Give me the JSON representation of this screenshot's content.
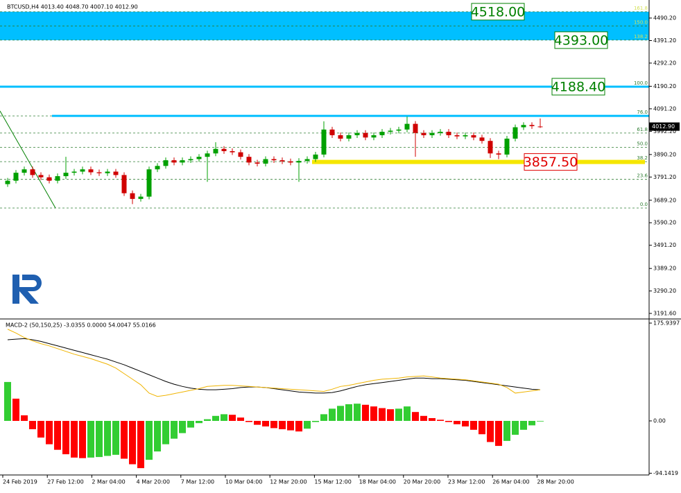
{
  "chart_data": [
    {
      "type": "candlestick",
      "title": "BTCUSD,H4  4013.40 4048.70 4007.10 4012.90",
      "up_color": "#00a000",
      "down_color": "#d00000",
      "open": [
        3760,
        3775,
        3810,
        3825,
        3800,
        3790,
        3775,
        3795,
        3810,
        3815,
        3825,
        3812,
        3808,
        3815,
        3800,
        3720,
        3695,
        3705,
        3825,
        3840,
        3865,
        3855,
        3865,
        3870,
        3880,
        3895,
        3915,
        3905,
        3900,
        3880,
        3855,
        3850,
        3870,
        3865,
        3860,
        3855,
        3862,
        3870,
        3890,
        4000,
        3975,
        3960,
        3975,
        3985,
        3965,
        3975,
        3990,
        3995,
        4000,
        4025,
        3985,
        3975,
        3985,
        3990,
        3975,
        3970,
        3975,
        3965,
        3950,
        3895,
        3890,
        3960,
        4010,
        4020,
        4013.4
      ],
      "high": [
        3787,
        3822,
        3837,
        3837,
        3812,
        3802,
        3807,
        3880,
        3827,
        3837,
        3837,
        3824,
        3827,
        3827,
        3812,
        3732,
        3717,
        3837,
        3852,
        3877,
        3877,
        3877,
        3882,
        3892,
        3907,
        3944,
        3927,
        3917,
        3912,
        3892,
        3867,
        3882,
        3882,
        3877,
        3872,
        3874,
        3882,
        3902,
        4036,
        4012,
        3987,
        3987,
        3997,
        3997,
        3987,
        4002,
        4007,
        4012,
        4057,
        4037,
        3997,
        3997,
        4002,
        4002,
        3987,
        3987,
        3987,
        3977,
        3962,
        3907,
        3972,
        4022,
        4032,
        4032,
        4048.7
      ],
      "low": [
        3748,
        3763,
        3798,
        3788,
        3778,
        3763,
        3763,
        3783,
        3798,
        3803,
        3800,
        3796,
        3796,
        3788,
        3708,
        3672,
        3683,
        3693,
        3813,
        3828,
        3843,
        3843,
        3853,
        3858,
        3770,
        3883,
        3893,
        3888,
        3868,
        3843,
        3838,
        3838,
        3853,
        3848,
        3843,
        3770,
        3850,
        3858,
        3878,
        3963,
        3948,
        3948,
        3963,
        3953,
        3953,
        3963,
        3978,
        3983,
        3988,
        3880,
        3963,
        3963,
        3973,
        3963,
        3958,
        3958,
        3953,
        3938,
        3875,
        3870,
        3878,
        3948,
        3998,
        4003,
        4007.1
      ],
      "close": [
        3775,
        3810,
        3825,
        3800,
        3790,
        3775,
        3795,
        3810,
        3815,
        3825,
        3812,
        3808,
        3815,
        3800,
        3720,
        3695,
        3705,
        3825,
        3840,
        3865,
        3855,
        3865,
        3870,
        3880,
        3895,
        3915,
        3905,
        3900,
        3880,
        3855,
        3850,
        3870,
        3865,
        3860,
        3855,
        3862,
        3870,
        3890,
        4000,
        3975,
        3960,
        3975,
        3985,
        3965,
        3975,
        3990,
        3995,
        4000,
        4025,
        3985,
        3975,
        3985,
        3990,
        3975,
        3970,
        3975,
        3965,
        3950,
        3895,
        3890,
        3960,
        4010,
        4020,
        4015,
        4012.9
      ],
      "ylim": [
        3173.3,
        4557.3
      ],
      "yticks": [
        {
          "value": 4490.2,
          "label": "4490.20"
        },
        {
          "value": 4391.2,
          "label": "4391.20"
        },
        {
          "value": 4292.2,
          "label": "4292.20"
        },
        {
          "value": 4190.2,
          "label": "4190.20"
        },
        {
          "value": 4091.2,
          "label": "4091.20"
        },
        {
          "value": 3992.2,
          "label": "3992.20"
        },
        {
          "value": 3890.2,
          "label": "3890.20"
        },
        {
          "value": 3791.2,
          "label": "3791.20"
        },
        {
          "value": 3689.2,
          "label": "3689.20"
        },
        {
          "value": 3590.2,
          "label": "3590.20"
        },
        {
          "value": 3491.2,
          "label": "3491.20"
        },
        {
          "value": 3389.2,
          "label": "3389.20"
        },
        {
          "value": 3290.2,
          "label": "3290.20"
        },
        {
          "value": 3191.6,
          "label": "3191.60"
        }
      ],
      "fib_levels": [
        {
          "label": "161.8",
          "price": 4518
        },
        {
          "label": "150.0",
          "price": 4455
        },
        {
          "label": "138.2",
          "price": 4393
        },
        {
          "label": "100.0",
          "price": 4188.4
        },
        {
          "label": "76.0",
          "price": 4060
        },
        {
          "label": "61.8",
          "price": 3984.6
        },
        {
          "label": "50.0",
          "price": 3921.7
        },
        {
          "label": "38.2",
          "price": 3858.8
        },
        {
          "label": "23.6",
          "price": 3780.9
        },
        {
          "label": "0.0",
          "price": 3655
        }
      ],
      "zone": [
        4518,
        4393
      ],
      "zone_color": "#00bfff",
      "support_line": 3857.5,
      "support_color": "#f5e600",
      "targets": [
        {
          "label": "4518.00",
          "price": 4518,
          "color": "#008000"
        },
        {
          "label": "4393.00",
          "price": 4393,
          "color": "#008000"
        },
        {
          "label": "4188.40",
          "price": 4188.4,
          "color": "#008000"
        },
        {
          "label": "3857.50",
          "price": 3857.5,
          "color": "#e00000"
        }
      ],
      "current_price": {
        "value": 4012.9,
        "label": "4012.90"
      },
      "x_labels": [
        "24 Feb 2019",
        "27 Feb 12:00",
        "2 Mar 04:00",
        "4 Mar 20:00",
        "7 Mar 12:00",
        "10 Mar 04:00",
        "12 Mar 20:00",
        "15 Mar 12:00",
        "18 Mar 04:00",
        "20 Mar 20:00",
        "23 Mar 12:00",
        "26 Mar 04:00",
        "28 Mar 20:00"
      ]
    },
    {
      "type": "macd",
      "title": "MACD-2 (50,150,25) -3.0355 0.0000 54.0047 55.0166",
      "up_color": "#32cd32",
      "down_color": "#ff0000",
      "histogram": [
        70,
        40,
        10,
        -15,
        -30,
        -42,
        -52,
        -60,
        -66,
        -67,
        -66,
        -65,
        -63,
        -61,
        -68,
        -78,
        -85,
        -70,
        -55,
        -42,
        -32,
        -22,
        -12,
        -4,
        3,
        9,
        12,
        11,
        6,
        -2,
        -7,
        -10,
        -13,
        -15,
        -17,
        -19,
        -14,
        -2,
        12,
        22,
        27,
        30,
        31,
        29,
        26,
        23,
        21,
        22,
        26,
        16,
        9,
        5,
        2,
        -2,
        -6,
        -10,
        -16,
        -24,
        -38,
        -45,
        -36,
        -25,
        -16,
        -8,
        -1
      ],
      "series": [
        {
          "color": "#000000",
          "values": [
            146,
            147,
            148,
            146,
            143,
            139,
            135,
            131,
            127,
            123,
            119,
            115,
            111,
            106,
            101,
            95,
            89,
            83,
            77,
            71,
            66,
            62,
            59,
            57,
            56,
            56,
            57,
            58,
            60,
            61,
            61,
            60,
            58,
            56,
            54,
            52,
            51,
            50,
            50,
            51,
            54,
            58,
            62,
            65,
            67,
            69,
            71,
            73,
            75,
            77,
            77,
            76,
            76,
            75,
            74,
            73,
            71,
            69,
            67,
            65,
            63,
            61,
            59,
            57,
            56
          ]
        },
        {
          "color": "#f0b400",
          "values": [
            165,
            158,
            150,
            144,
            139,
            135,
            130,
            125,
            120,
            116,
            112,
            107,
            102,
            95,
            85,
            75,
            65,
            50,
            44,
            46,
            49,
            52,
            55,
            58,
            62,
            63,
            64,
            64,
            63,
            62,
            61,
            60,
            59,
            58,
            57,
            56,
            55,
            54,
            53,
            57,
            62,
            64,
            67,
            70,
            73,
            75,
            76,
            77,
            79,
            80,
            81,
            79,
            77,
            76,
            75,
            74,
            72,
            70,
            68,
            66,
            60,
            50,
            52,
            54,
            56
          ]
        }
      ],
      "ylim": [
        -97.3,
        180.9
      ],
      "yticks": [
        175.9397,
        {
          "value": 0,
          "label": "0.00"
        },
        -94.1419
      ]
    }
  ]
}
